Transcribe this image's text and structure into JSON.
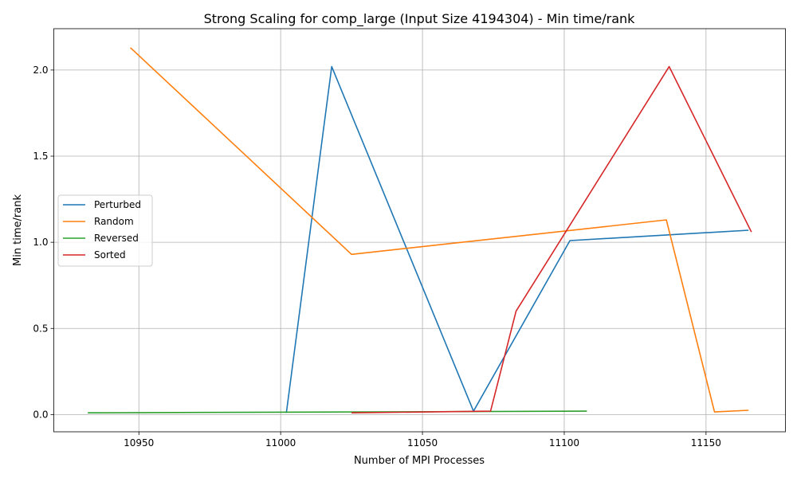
{
  "chart_data": {
    "type": "line",
    "title": "Strong Scaling for comp_large (Input Size 4194304) - Min time/rank",
    "xlabel": "Number of MPI Processes",
    "ylabel": "Min time/rank",
    "xlim": [
      10920,
      11178
    ],
    "ylim": [
      -0.1,
      2.24
    ],
    "xticks": [
      10950,
      11000,
      11050,
      11100,
      11150
    ],
    "yticks": [
      0.0,
      0.5,
      1.0,
      1.5,
      2.0
    ],
    "xtick_labels": [
      "10950",
      "11000",
      "11050",
      "11100",
      "11150"
    ],
    "ytick_labels": [
      "0.0",
      "0.5",
      "1.0",
      "1.5",
      "2.0"
    ],
    "grid": true,
    "legend_position": "center-left",
    "series": [
      {
        "name": "Perturbed",
        "color": "#1f77b4",
        "x": [
          11002,
          11018,
          11068,
          11102,
          11165
        ],
        "y": [
          0.01,
          2.02,
          0.02,
          1.01,
          1.07
        ]
      },
      {
        "name": "Random",
        "color": "#ff7f0e",
        "x": [
          10947,
          11025,
          11136,
          11153,
          11165
        ],
        "y": [
          2.13,
          0.93,
          1.13,
          0.015,
          0.025
        ]
      },
      {
        "name": "Reversed",
        "color": "#2ca02c",
        "x": [
          10932,
          11108
        ],
        "y": [
          0.01,
          0.02
        ]
      },
      {
        "name": "Sorted",
        "color": "#d62728",
        "x": [
          11025,
          11074,
          11083,
          11137,
          11166
        ],
        "y": [
          0.01,
          0.02,
          0.6,
          2.02,
          1.06
        ]
      }
    ]
  }
}
